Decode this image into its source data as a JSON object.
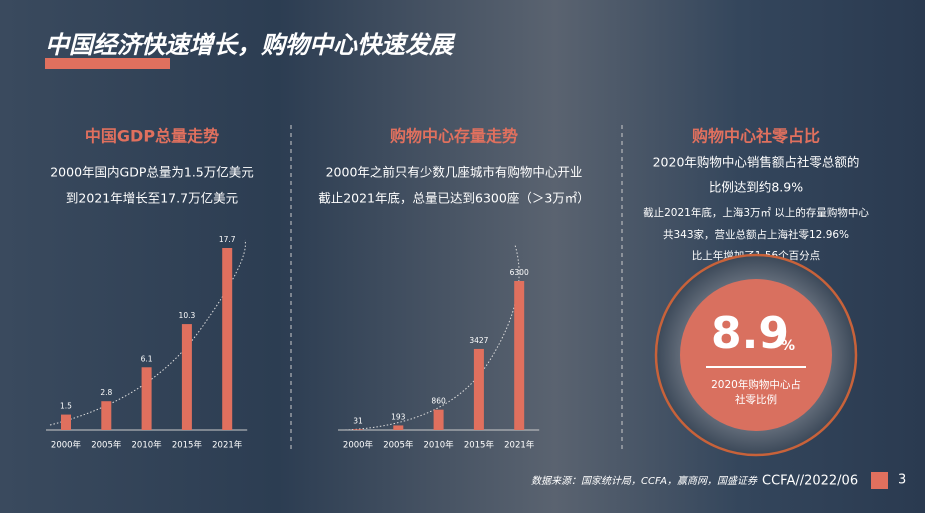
{
  "title": "中国经济快速增长，购物中心快速发展",
  "chart_data": [
    {
      "type": "bar",
      "title": "中国GDP总量走势",
      "subtitle": [
        "2000年国内GDP总量为1.5万亿美元",
        "到2021年增长至17.7万亿美元"
      ],
      "categories": [
        "2000年",
        "2005年",
        "2010年",
        "2015年",
        "2021年"
      ],
      "values": [
        1.5,
        2.8,
        6.1,
        10.3,
        17.7
      ],
      "color": "#e0705e"
    },
    {
      "type": "bar",
      "title": "购物中心存量走势",
      "subtitle": [
        "2000年之前只有少数几座城市有购物中心开业",
        "截止2021年底，总量已达到6300座（＞3万㎡）"
      ],
      "categories": [
        "2000年",
        "2005年",
        "2010年",
        "2015年",
        "2021年"
      ],
      "values": [
        31,
        193,
        860,
        3427,
        6300
      ],
      "color": "#e0705e"
    }
  ],
  "share_panel": {
    "title": "购物中心社零占比",
    "lines": [
      "2020年购物中心销售额占社零总额的",
      "比例达到约8.9%"
    ],
    "notes": [
      "截止2021年底，上海3万㎡ 以上的存量购物中心",
      "共343家，营业总额占上海社零12.96%",
      "比上年增加了1.56个百分点"
    ],
    "big_value": "8.9",
    "big_unit": "%",
    "caption": [
      "2020年购物中心占",
      "社零比例"
    ]
  },
  "footer": {
    "source": "数据来源：国家统计局，CCFA，赢商网，国盛证券",
    "code": "CCFA//2022/06",
    "page": "3"
  }
}
